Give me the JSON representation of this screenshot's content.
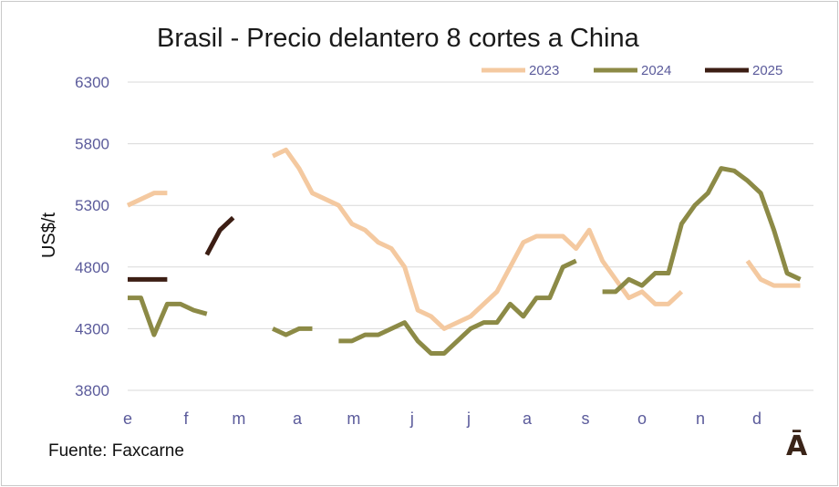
{
  "title": "Brasil - Precio delantero 8 cortes a China",
  "source": "Fuente: Faxcarne",
  "logo_text": "Ā",
  "colors": {
    "2023": "#f4c9a0",
    "2024": "#8c8a46",
    "2025": "#3c1e14",
    "grid": "#d9d9d9",
    "axis_text": "#5b5b9b"
  },
  "chart_data": {
    "type": "line",
    "title": "Brasil - Precio delantero 8 cortes a China",
    "ylabel": "US$/t",
    "xlabel": "",
    "ylim": [
      3800,
      6300
    ],
    "yticks": [
      3800,
      4300,
      4800,
      5300,
      5800,
      6300
    ],
    "xlim": [
      0,
      52
    ],
    "month_ticks": [
      {
        "label": "e",
        "week": 0
      },
      {
        "label": "f",
        "week": 4.43
      },
      {
        "label": "m",
        "week": 8.43
      },
      {
        "label": "a",
        "week": 12.86
      },
      {
        "label": "m",
        "week": 17.14
      },
      {
        "label": "j",
        "week": 21.57
      },
      {
        "label": "j",
        "week": 25.86
      },
      {
        "label": "a",
        "week": 30.29
      },
      {
        "label": "s",
        "week": 34.71
      },
      {
        "label": "o",
        "week": 39.0
      },
      {
        "label": "n",
        "week": 43.43
      },
      {
        "label": "d",
        "week": 47.71
      }
    ],
    "grid": true,
    "legend_position": "top-right",
    "series": [
      {
        "name": "2023",
        "segments": [
          [
            [
              0,
              5300
            ],
            [
              1,
              5350
            ],
            [
              2,
              5400
            ],
            [
              3,
              5400
            ]
          ],
          [
            [
              11,
              5700
            ],
            [
              12,
              5750
            ],
            [
              13,
              5600
            ],
            [
              14,
              5400
            ],
            [
              15,
              5350
            ],
            [
              16,
              5300
            ],
            [
              17,
              5150
            ],
            [
              18,
              5100
            ],
            [
              19,
              5000
            ],
            [
              20,
              4950
            ],
            [
              21,
              4800
            ],
            [
              22,
              4450
            ],
            [
              23,
              4400
            ],
            [
              24,
              4300
            ],
            [
              25,
              4350
            ],
            [
              26,
              4400
            ],
            [
              27,
              4500
            ],
            [
              28,
              4600
            ],
            [
              29,
              4800
            ],
            [
              30,
              5000
            ],
            [
              31,
              5050
            ],
            [
              32,
              5050
            ],
            [
              33,
              5050
            ],
            [
              34,
              4950
            ],
            [
              35,
              5100
            ],
            [
              36,
              4850
            ],
            [
              37,
              4700
            ],
            [
              38,
              4550
            ],
            [
              39,
              4600
            ],
            [
              40,
              4500
            ],
            [
              41,
              4500
            ],
            [
              42,
              4600
            ]
          ],
          [
            [
              47,
              4850
            ],
            [
              48,
              4700
            ],
            [
              49,
              4650
            ],
            [
              50,
              4650
            ],
            [
              51,
              4650
            ]
          ]
        ]
      },
      {
        "name": "2024",
        "segments": [
          [
            [
              0,
              4550
            ],
            [
              1,
              4550
            ],
            [
              2,
              4250
            ],
            [
              3,
              4500
            ],
            [
              4,
              4500
            ],
            [
              5,
              4450
            ],
            [
              6,
              4420
            ]
          ],
          [
            [
              11,
              4300
            ],
            [
              12,
              4250
            ],
            [
              13,
              4300
            ],
            [
              14,
              4300
            ]
          ],
          [
            [
              16,
              4200
            ],
            [
              17,
              4200
            ],
            [
              18,
              4250
            ],
            [
              19,
              4250
            ],
            [
              20,
              4300
            ],
            [
              21,
              4350
            ],
            [
              22,
              4200
            ],
            [
              23,
              4100
            ],
            [
              24,
              4100
            ],
            [
              25,
              4200
            ],
            [
              26,
              4300
            ],
            [
              27,
              4350
            ],
            [
              28,
              4350
            ],
            [
              29,
              4500
            ],
            [
              30,
              4400
            ],
            [
              31,
              4550
            ],
            [
              32,
              4550
            ],
            [
              33,
              4800
            ],
            [
              34,
              4850
            ]
          ],
          [
            [
              36,
              4600
            ],
            [
              37,
              4600
            ],
            [
              38,
              4700
            ],
            [
              39,
              4650
            ],
            [
              40,
              4750
            ],
            [
              41,
              4750
            ],
            [
              42,
              5150
            ],
            [
              43,
              5300
            ],
            [
              44,
              5400
            ],
            [
              45,
              5600
            ],
            [
              46,
              5580
            ],
            [
              47,
              5500
            ],
            [
              48,
              5400
            ],
            [
              49,
              5100
            ],
            [
              50,
              4750
            ],
            [
              51,
              4700
            ]
          ]
        ]
      },
      {
        "name": "2025",
        "segments": [
          [
            [
              0,
              4700
            ],
            [
              1,
              4700
            ],
            [
              2,
              4700
            ],
            [
              3,
              4700
            ]
          ],
          [
            [
              6,
              4900
            ],
            [
              7,
              5100
            ],
            [
              8,
              5200
            ]
          ]
        ]
      }
    ]
  }
}
